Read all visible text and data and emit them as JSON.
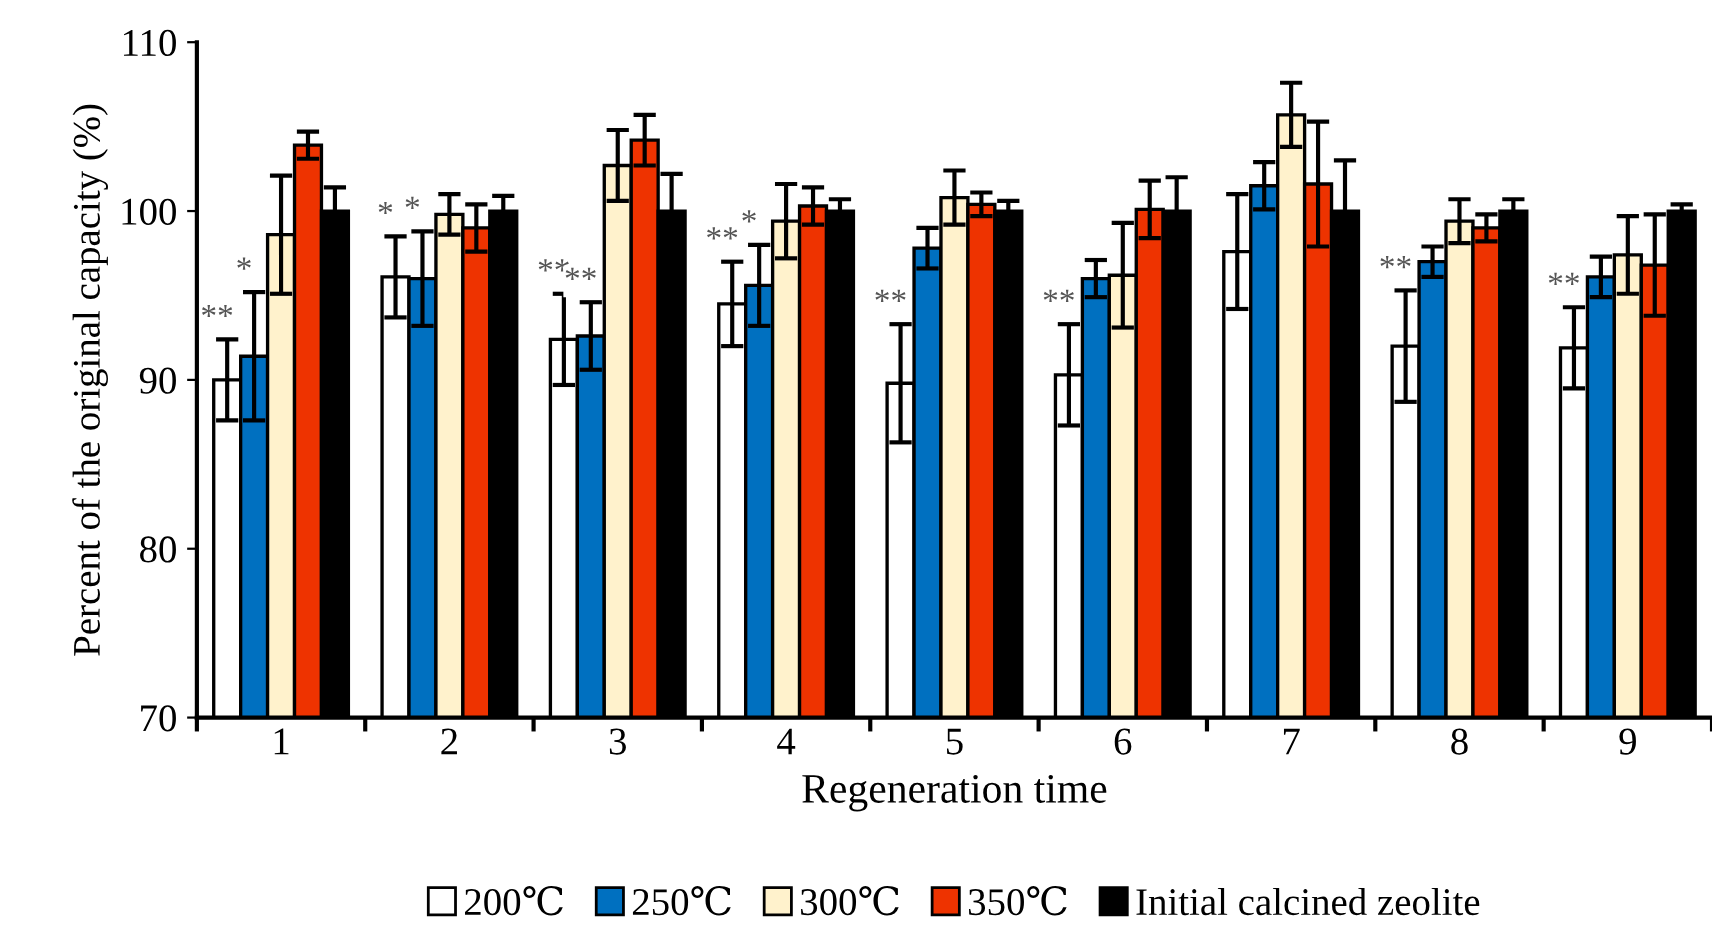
{
  "chart_data": {
    "type": "bar",
    "xlabel": "Regeneration time",
    "ylabel": "Percent of the original capacity (%)",
    "categories": [
      "1",
      "2",
      "3",
      "4",
      "5",
      "6",
      "7",
      "8",
      "9"
    ],
    "series": [
      {
        "name": "200℃",
        "color": "#ffffff",
        "values": [
          90.0,
          96.1,
          92.4,
          94.5,
          89.8,
          90.3,
          97.6,
          92.0,
          91.9
        ],
        "errors": [
          2.4,
          2.4,
          2.7,
          2.5,
          3.5,
          3.0,
          3.4,
          3.3,
          2.4
        ],
        "value_labels": [
          "**",
          "*",
          "**",
          "**",
          "**",
          "**",
          null,
          "**",
          "**"
        ]
      },
      {
        "name": "250℃",
        "color": "#0070c0",
        "values": [
          91.4,
          96.0,
          92.6,
          95.6,
          97.8,
          96.0,
          101.5,
          97.0,
          96.1
        ],
        "errors": [
          3.8,
          2.8,
          2.0,
          2.4,
          1.2,
          1.1,
          1.4,
          0.9,
          1.2
        ],
        "value_labels": [
          "*",
          "*",
          "**",
          "*",
          null,
          null,
          null,
          null,
          null
        ]
      },
      {
        "name": "300℃",
        "color": "#fff2cc",
        "values": [
          98.6,
          99.8,
          102.7,
          99.4,
          100.8,
          96.2,
          105.7,
          99.4,
          97.4
        ],
        "errors": [
          3.5,
          1.2,
          2.1,
          2.2,
          1.6,
          3.1,
          1.9,
          1.3,
          2.3
        ]
      },
      {
        "name": "350℃",
        "color": "#ee3300",
        "values": [
          103.9,
          99.0,
          104.2,
          100.3,
          100.4,
          100.1,
          101.6,
          99.0,
          96.8
        ],
        "errors": [
          0.8,
          1.4,
          1.5,
          1.1,
          0.7,
          1.7,
          3.7,
          0.8,
          3.0
        ]
      },
      {
        "name": "Initial calcined zeolite",
        "color": "#000000",
        "values": [
          100,
          100,
          100,
          100,
          100,
          100,
          100,
          100,
          100
        ],
        "errors": [
          1.4,
          0.9,
          2.2,
          0.7,
          0.6,
          2.0,
          3.0,
          0.7,
          0.4
        ]
      }
    ],
    "ylim": [
      70,
      110
    ],
    "yticks": [
      70,
      80,
      90,
      100,
      110
    ],
    "grid": false,
    "legend": "bottom"
  }
}
